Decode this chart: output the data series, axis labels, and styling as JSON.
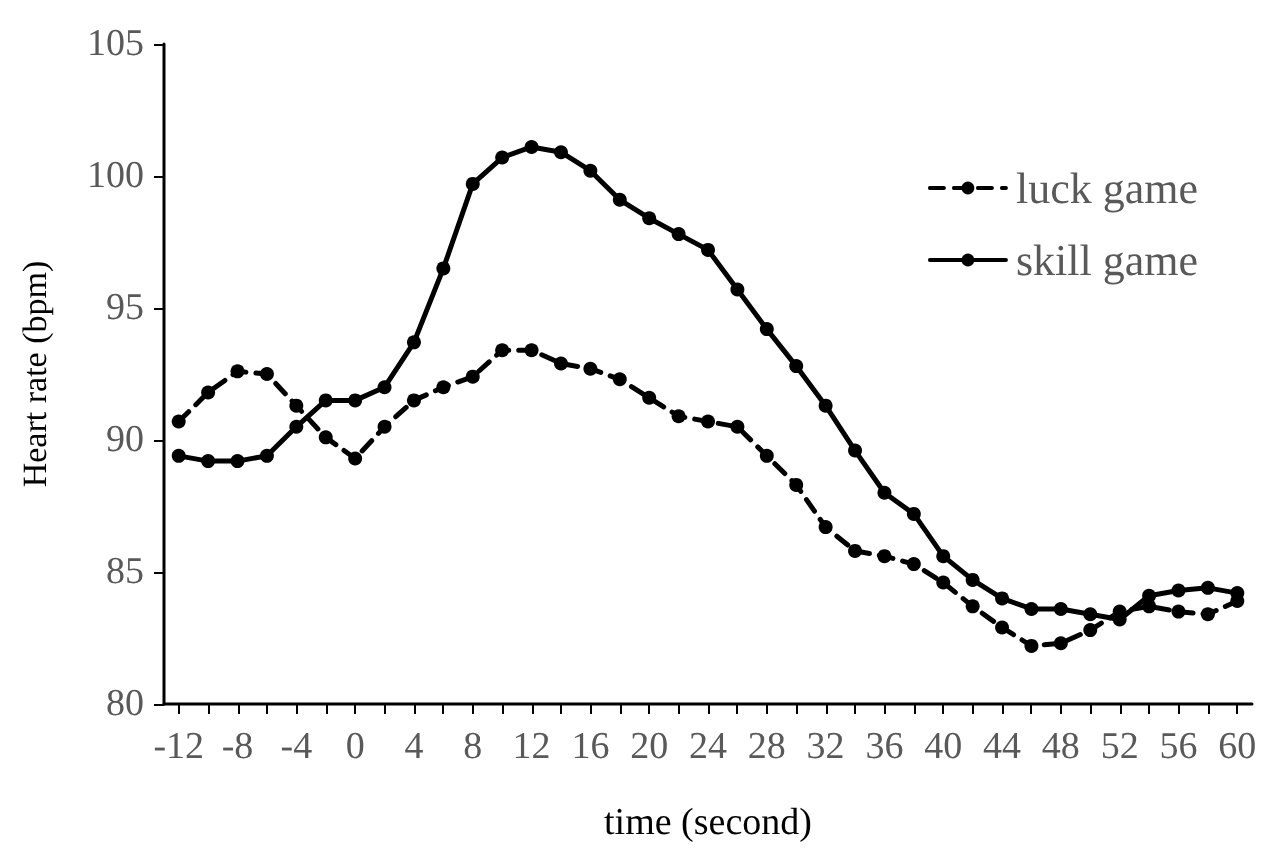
{
  "chart_data": {
    "type": "line",
    "xlabel": "time (second)",
    "ylabel": "Heart rate (bpm)",
    "x": [
      -12,
      -10,
      -8,
      -6,
      -4,
      -2,
      0,
      2,
      4,
      6,
      8,
      10,
      12,
      14,
      16,
      18,
      20,
      22,
      24,
      26,
      28,
      30,
      32,
      34,
      36,
      38,
      40,
      42,
      44,
      46,
      48,
      50,
      52,
      54,
      56,
      58,
      60
    ],
    "series": [
      {
        "name": "luck game",
        "color": "#000000",
        "line_style": "dashed",
        "values": [
          90.7,
          91.8,
          92.6,
          92.5,
          91.3,
          90.1,
          89.3,
          90.5,
          91.5,
          92.0,
          92.4,
          93.4,
          93.4,
          92.9,
          92.7,
          92.3,
          91.6,
          90.9,
          90.7,
          90.5,
          89.4,
          88.3,
          86.7,
          85.8,
          85.6,
          85.3,
          84.6,
          83.7,
          82.9,
          82.2,
          82.3,
          82.8,
          83.5,
          83.7,
          83.5,
          83.4,
          83.9
        ]
      },
      {
        "name": "skill game",
        "color": "#000000",
        "line_style": "solid",
        "values": [
          89.4,
          89.2,
          89.2,
          89.4,
          90.5,
          91.5,
          91.5,
          92.0,
          93.7,
          96.5,
          99.7,
          100.7,
          101.1,
          100.9,
          100.2,
          99.1,
          98.4,
          97.8,
          97.2,
          95.7,
          94.2,
          92.8,
          91.3,
          89.6,
          88.0,
          87.2,
          85.6,
          84.7,
          84.0,
          83.6,
          83.6,
          83.4,
          83.2,
          84.1,
          84.3,
          84.4,
          84.2
        ]
      }
    ],
    "xlim": [
      -13,
      61
    ],
    "xticks": [
      -12,
      {
        "value": -10,
        "label": null
      },
      -8,
      {
        "value": -6,
        "label": null
      },
      -4,
      {
        "value": -2,
        "label": null
      },
      0,
      {
        "value": 2,
        "label": null
      },
      4,
      {
        "value": 6,
        "label": null
      },
      8,
      {
        "value": 10,
        "label": null
      },
      12,
      {
        "value": 14,
        "label": null
      },
      16,
      {
        "value": 18,
        "label": null
      },
      20,
      {
        "value": 22,
        "label": null
      },
      24,
      {
        "value": 26,
        "label": null
      },
      28,
      {
        "value": 30,
        "label": null
      },
      32,
      {
        "value": 34,
        "label": null
      },
      36,
      {
        "value": 38,
        "label": null
      },
      40,
      {
        "value": 42,
        "label": null
      },
      44,
      {
        "value": 46,
        "label": null
      },
      48,
      {
        "value": 50,
        "label": null
      },
      52,
      {
        "value": 54,
        "label": null
      },
      56,
      {
        "value": 58,
        "label": null
      },
      60
    ],
    "ylim": [
      80,
      105
    ],
    "yticks": [
      80,
      85,
      90,
      95,
      100,
      105
    ],
    "grid": false,
    "legend": "top right",
    "marker": "circle"
  }
}
